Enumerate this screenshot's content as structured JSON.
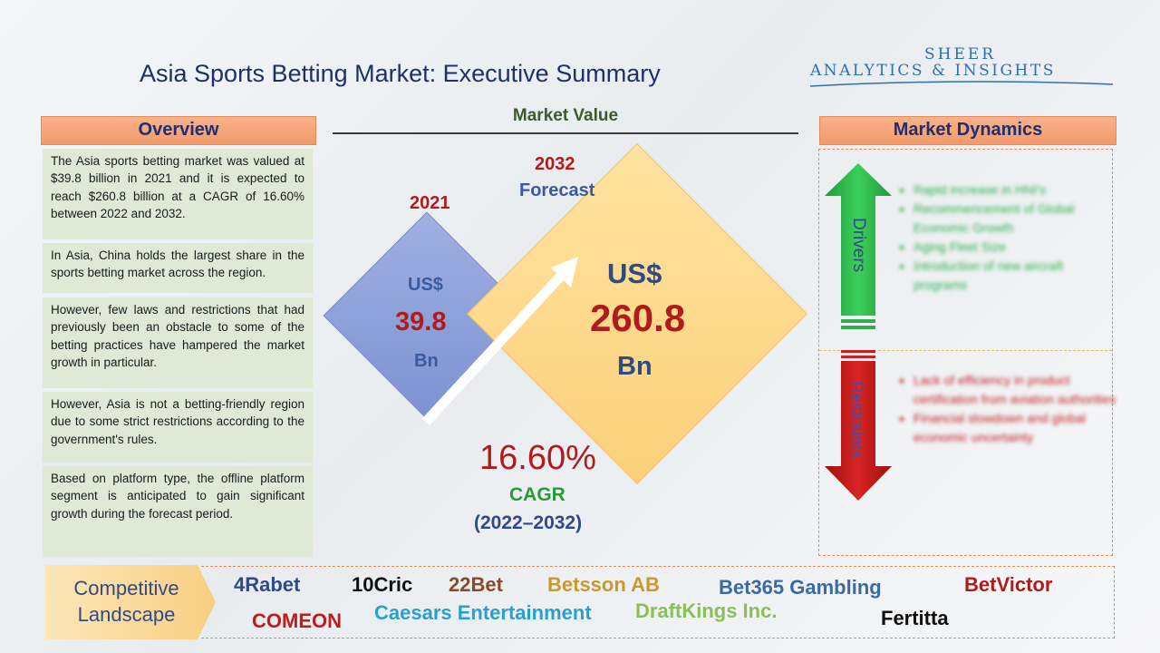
{
  "header": {
    "title": "Asia Sports Betting Market: Executive Summary",
    "logo_top": "SHEER",
    "logo_bottom": "ANALYTICS & INSIGHTS"
  },
  "overview": {
    "heading": "Overview",
    "paragraphs": [
      "The Asia sports betting market was valued at $39.8 billion in 2021 and it is expected to reach $260.8 billion at a CAGR of 16.60% between 2022 and 2032.",
      "In Asia, China holds the largest share in the sports betting market across the region.",
      "However, few laws and restrictions that had previously been an obstacle to some of the betting practices have hampered the market growth in particular.",
      "However, Asia is not a betting-friendly region due to some strict restrictions according to the government's rules.",
      "Based on platform type, the offline platform segment is anticipated to gain significant growth during the forecast period."
    ]
  },
  "market_value": {
    "heading": "Market Value",
    "base": {
      "year": "2021",
      "currency": "US$",
      "value": "39.8",
      "unit": "Bn"
    },
    "forecast": {
      "year": "2032",
      "label": "Forecast",
      "currency": "US$",
      "value": "260.8",
      "unit": "Bn"
    },
    "cagr": {
      "value": "16.60%",
      "label": "CAGR",
      "period": "(2022–2032)"
    }
  },
  "market_dynamics": {
    "heading": "Market Dynamics",
    "drivers_label": "Drivers",
    "drivers": [
      "Rapid increase in HNI's",
      "Recommencement of Global Economic Growth",
      "Aging Fleet Size",
      "Introduction of new aircraft programs"
    ],
    "restraints_label": "Restraints",
    "restraints": [
      "Lack of efficiency in product certification from aviation authorities",
      "Financial slowdown and global economic uncertainty"
    ]
  },
  "competitive_landscape": {
    "label_line1": "Competitive",
    "label_line2": "Landscape",
    "companies": [
      {
        "name": "4Rabet",
        "color": "#2f4a85"
      },
      {
        "name": "10Cric",
        "color": "#111111"
      },
      {
        "name": "22Bet",
        "color": "#8a4a2a"
      },
      {
        "name": "Betsson AB",
        "color": "#c89a2a"
      },
      {
        "name": "Bet365 Gambling",
        "color": "#3a6aa0"
      },
      {
        "name": "BetVictor",
        "color": "#b01b1b"
      },
      {
        "name": "COMEON",
        "color": "#c41a1a"
      },
      {
        "name": "Caesars Entertainment",
        "color": "#2aa0d0"
      },
      {
        "name": "DraftKings Inc.",
        "color": "#8ac05a"
      },
      {
        "name": "Fertitta",
        "color": "#111111"
      }
    ]
  },
  "colors": {
    "accent_orange": "#f39a6b",
    "title_blue": "#1f2f6b",
    "value_red": "#b01b1b",
    "drivers_green": "#2fae4b",
    "restraints_red": "#c82020"
  }
}
